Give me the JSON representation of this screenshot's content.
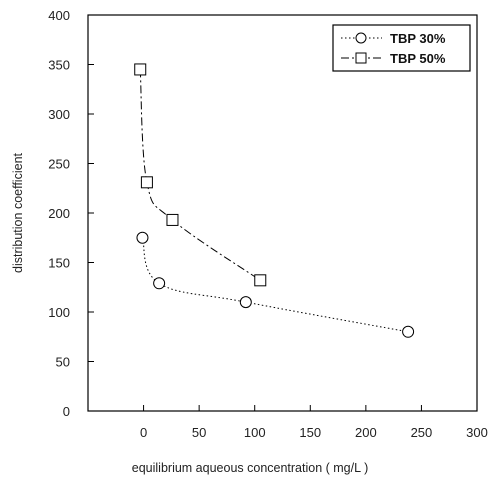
{
  "chart_data": {
    "type": "scatter",
    "title": "",
    "xlabel": "equilibrium aqueous concentration ( mg/L )",
    "ylabel": "distribution coefficient",
    "xlim": [
      -50,
      300
    ],
    "ylim": [
      0,
      400
    ],
    "xticks": [
      0,
      50,
      100,
      150,
      200,
      250,
      300
    ],
    "yticks": [
      0,
      50,
      100,
      150,
      200,
      250,
      300,
      350,
      400
    ],
    "grid": false,
    "legend": "top-right",
    "series": [
      {
        "name": "TBP 30%",
        "marker": "circle",
        "line": "dotted",
        "x": [
          -1,
          14,
          92,
          238
        ],
        "y": [
          175,
          129,
          110,
          80
        ]
      },
      {
        "name": "TBP 50%",
        "marker": "square",
        "line": "dash-dot",
        "x": [
          -3,
          3,
          26,
          105
        ],
        "y": [
          345,
          231,
          193,
          132
        ]
      }
    ]
  }
}
